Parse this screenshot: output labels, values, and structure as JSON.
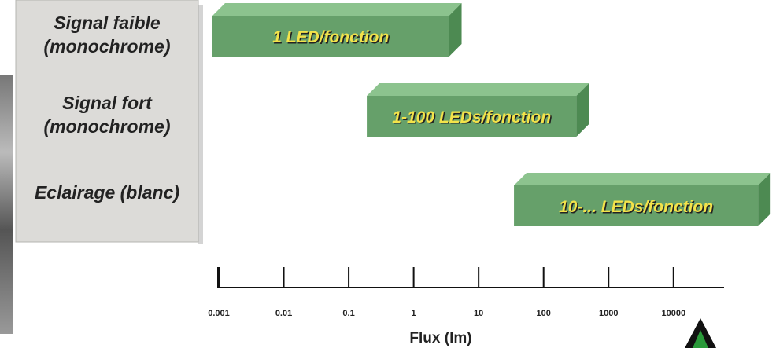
{
  "chart_data": {
    "type": "range_bar",
    "categories": [
      "Signal faible (monochrome)",
      "Signal fort (monochrome)",
      "Eclairage (blanc)"
    ],
    "bars": [
      {
        "label": "1 LED/fonction",
        "start": 0.0008,
        "end": 3.5
      },
      {
        "label": "1-100 LEDs/fonction",
        "start": 0.19,
        "end": 320
      },
      {
        "label": "10-... LEDs/fonction",
        "start": 35,
        "end": 200000
      }
    ],
    "color": "#66a06a",
    "xlabel": "Flux (lm)",
    "log_x": true,
    "xlim": [
      0.001,
      60000
    ],
    "xticks": [
      0.001,
      0.01,
      0.1,
      1,
      10,
      100,
      1000,
      10000
    ]
  }
}
